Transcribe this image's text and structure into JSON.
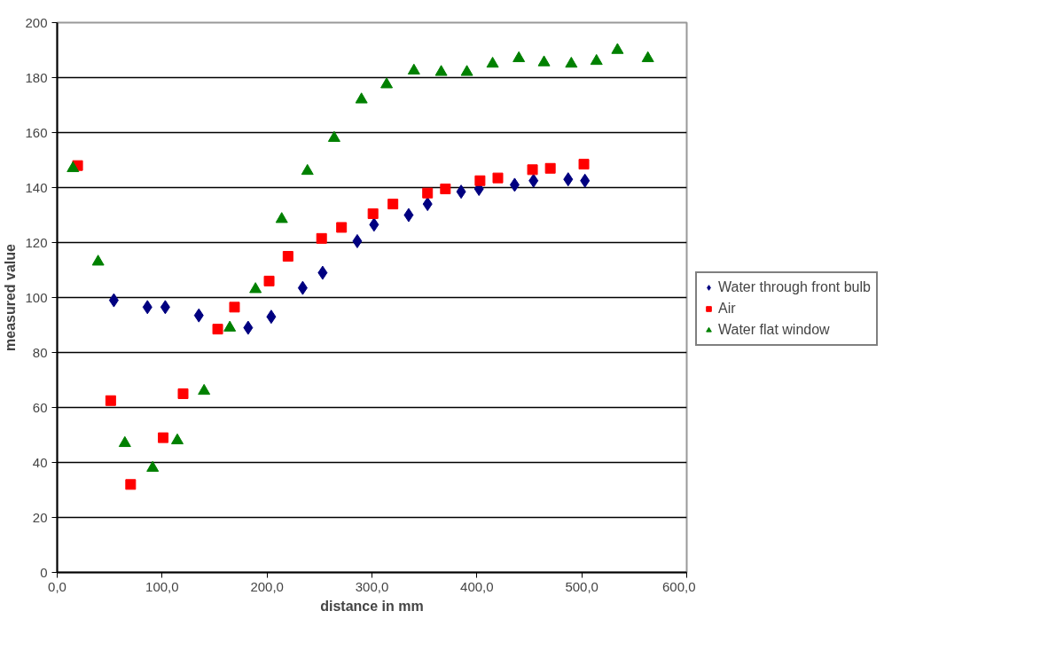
{
  "chart_data": {
    "type": "scatter",
    "xlabel": "distance in mm",
    "ylabel": "measured value",
    "xlim": [
      0,
      600
    ],
    "xticks": [
      {
        "value": 0,
        "label": "0,0"
      },
      {
        "value": 100,
        "label": "100,0"
      },
      {
        "value": 200,
        "label": "200,0"
      },
      {
        "value": 300,
        "label": "300,0"
      },
      {
        "value": 400,
        "label": "400,0"
      },
      {
        "value": 500,
        "label": "500,0"
      },
      {
        "value": 600,
        "label": "600,0"
      }
    ],
    "ylim": [
      0,
      200
    ],
    "yticks": [
      0,
      20,
      40,
      60,
      80,
      100,
      120,
      140,
      160,
      180,
      200
    ],
    "grid": "y",
    "legend": "right",
    "series": [
      {
        "name": "Water through front bulb",
        "color": "#000080",
        "marker": "diamond",
        "x": [
          54,
          86,
          103,
          135,
          182,
          204,
          234,
          253,
          286,
          302,
          335,
          353,
          385,
          402,
          436,
          454,
          487,
          503
        ],
        "values": [
          99,
          96.5,
          96.5,
          93.5,
          89,
          93,
          103.5,
          109,
          120.5,
          126.5,
          130,
          134,
          138.5,
          139.5,
          141,
          142.5,
          143,
          142.5
        ]
      },
      {
        "name": "Air",
        "color": "#ff0000",
        "marker": "square",
        "x": [
          19.5,
          51,
          70,
          101,
          120,
          153,
          169,
          202,
          220,
          252,
          271,
          301,
          320,
          353,
          370,
          403,
          420,
          453,
          470,
          502
        ],
        "values": [
          148,
          62.5,
          32,
          49,
          65,
          88.5,
          96.5,
          106,
          115,
          121.5,
          125.5,
          130.5,
          134,
          138,
          139.5,
          142.5,
          143.5,
          146.5,
          147,
          148.5
        ]
      },
      {
        "name": "Water flat window",
        "color": "#008000",
        "marker": "triangle",
        "x": [
          15,
          39,
          64.5,
          91,
          114.5,
          140,
          164.5,
          189,
          214,
          238.5,
          264,
          290,
          314,
          340,
          366,
          390.5,
          415,
          440,
          464,
          490,
          514,
          534,
          563
        ],
        "values": [
          147,
          113,
          47,
          38,
          48,
          66,
          89,
          103,
          128.5,
          146,
          158,
          172,
          177.5,
          182.5,
          182,
          182,
          185,
          187,
          185.5,
          185,
          186,
          190,
          187
        ]
      }
    ]
  }
}
